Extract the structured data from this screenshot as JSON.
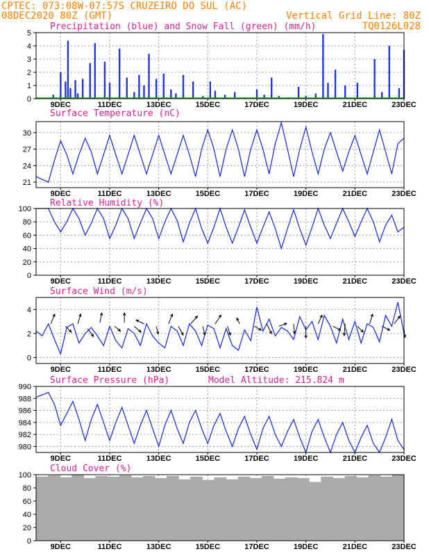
{
  "header": {
    "line1": "CPTEC:  073:08W-07:57S  CRUZEIRO DO SUL (AC)",
    "line2_left": "08DEC2020 80Z (GMT)",
    "line2_right": "Vertical Grid Line: 80Z",
    "line3_right": "TQ0126L028"
  },
  "x_labels": [
    "9DEC",
    "11DEC",
    "13DEC",
    "15DEC",
    "17DEC",
    "19DEC",
    "21DEC",
    "23DEC"
  ],
  "colors": {
    "header": "#ff7f00",
    "title": "#e0208f",
    "line": "#2233dd",
    "precip": "#2233dd",
    "snow": "#00aa00",
    "cloud": "#aaaaaa"
  },
  "chart_data": [
    {
      "type": "bar",
      "title": "Precipitation (blue) and Snow Fall (green) (mm/h)",
      "ylim": [
        0,
        5
      ],
      "yticks": [
        "0",
        "1",
        "2",
        "3",
        "4",
        "5"
      ],
      "x_days": [
        8.7,
        9.0,
        9.2,
        9.3,
        9.4,
        9.6,
        9.7,
        9.9,
        10.2,
        10.4,
        10.8,
        11.0,
        11.4,
        11.7,
        12.0,
        12.2,
        12.4,
        12.6,
        12.9,
        13.2,
        13.5,
        13.7,
        14.0,
        14.4,
        14.8,
        15.1,
        15.3,
        15.7,
        16.1,
        16.5,
        17.0,
        17.3,
        17.6,
        17.9,
        18.3,
        18.7,
        19.0,
        19.4,
        19.7,
        19.9,
        20.2,
        20.6,
        21.1,
        21.4,
        21.8,
        22.1,
        22.4,
        22.8,
        23.0
      ],
      "values": [
        0.3,
        2.0,
        1.3,
        4.4,
        0.8,
        1.4,
        0.4,
        1.5,
        2.7,
        4.2,
        2.8,
        1.2,
        3.8,
        1.6,
        0.5,
        1.8,
        1.0,
        3.4,
        1.5,
        1.9,
        0.7,
        0.4,
        1.8,
        1.3,
        0.2,
        1.3,
        0.6,
        0.3,
        0.5,
        0.1,
        0.7,
        0.3,
        1.6,
        0.2,
        0.1,
        0.9,
        0.2,
        0.4,
        4.9,
        1.2,
        2.2,
        1.0,
        1.2,
        0.1,
        3.0,
        0.5,
        4.0,
        0.8,
        3.7
      ],
      "snow_values": []
    },
    {
      "type": "line",
      "title": "Surface Temperature (nC)",
      "ylim": [
        20,
        32
      ],
      "yticks": [
        "21",
        "24",
        "27",
        "30"
      ],
      "y_tick_values": [
        21,
        24,
        27,
        30
      ],
      "x_days": [
        8.0,
        8.25,
        8.5,
        8.75,
        9.0,
        9.25,
        9.5,
        9.75,
        10.0,
        10.25,
        10.5,
        10.75,
        11.0,
        11.25,
        11.5,
        11.75,
        12.0,
        12.25,
        12.5,
        12.75,
        13.0,
        13.25,
        13.5,
        13.75,
        14.0,
        14.25,
        14.5,
        14.75,
        15.0,
        15.25,
        15.5,
        15.75,
        16.0,
        16.25,
        16.5,
        16.75,
        17.0,
        17.25,
        17.5,
        17.75,
        18.0,
        18.25,
        18.5,
        18.75,
        19.0,
        19.25,
        19.5,
        19.75,
        20.0,
        20.25,
        20.5,
        20.75,
        21.0,
        21.25,
        21.5,
        21.75,
        22.0,
        22.25,
        22.5,
        22.75,
        23.0
      ],
      "values": [
        22,
        21.5,
        21,
        25,
        28.5,
        26,
        22.5,
        26,
        29,
        26.5,
        22.5,
        26,
        29.5,
        26,
        22.5,
        26,
        29.5,
        26,
        22.5,
        26,
        29.5,
        26,
        22.5,
        26,
        29.5,
        26,
        22,
        27,
        30.5,
        27,
        22,
        27,
        30.5,
        27,
        22,
        27,
        30.5,
        27,
        22.5,
        28,
        31.8,
        27,
        22,
        27,
        31,
        26.5,
        22.5,
        27,
        30,
        26.5,
        23,
        26.5,
        29.5,
        26,
        22.5,
        26.5,
        30.5,
        26.5,
        22.5,
        28,
        29
      ]
    },
    {
      "type": "line",
      "title": "Relative Humidity (%)",
      "ylim": [
        0,
        100
      ],
      "yticks": [
        "0",
        "20",
        "40",
        "60",
        "80",
        "100"
      ],
      "y_tick_values": [
        0,
        20,
        40,
        60,
        80,
        100
      ],
      "x_days": [
        8.0,
        8.25,
        8.5,
        8.75,
        9.0,
        9.25,
        9.5,
        9.75,
        10.0,
        10.25,
        10.5,
        10.75,
        11.0,
        11.25,
        11.5,
        11.75,
        12.0,
        12.25,
        12.5,
        12.75,
        13.0,
        13.25,
        13.5,
        13.75,
        14.0,
        14.25,
        14.5,
        14.75,
        15.0,
        15.25,
        15.5,
        15.75,
        16.0,
        16.25,
        16.5,
        16.75,
        17.0,
        17.25,
        17.5,
        17.75,
        18.0,
        18.25,
        18.5,
        18.75,
        19.0,
        19.25,
        19.5,
        19.75,
        20.0,
        20.25,
        20.5,
        20.75,
        21.0,
        21.25,
        21.5,
        21.75,
        22.0,
        22.25,
        22.5,
        22.75,
        23.0
      ],
      "values": [
        100,
        100,
        100,
        80,
        65,
        80,
        100,
        85,
        60,
        78,
        100,
        85,
        55,
        75,
        100,
        85,
        55,
        78,
        100,
        85,
        55,
        80,
        100,
        82,
        50,
        78,
        100,
        70,
        48,
        72,
        100,
        72,
        48,
        72,
        98,
        72,
        48,
        72,
        95,
        70,
        40,
        70,
        98,
        70,
        45,
        72,
        100,
        75,
        55,
        78,
        100,
        80,
        58,
        80,
        100,
        80,
        50,
        75,
        90,
        65,
        72
      ]
    },
    {
      "type": "line",
      "title": "Surface Wind (m/s)",
      "ylim": [
        -0.5,
        5
      ],
      "yticks": [
        "0",
        "2",
        "4"
      ],
      "y_tick_values": [
        0,
        2,
        4
      ],
      "x_days": [
        8.0,
        8.25,
        8.5,
        8.75,
        9.0,
        9.25,
        9.5,
        9.75,
        10.0,
        10.25,
        10.5,
        10.75,
        11.0,
        11.25,
        11.5,
        11.75,
        12.0,
        12.25,
        12.5,
        12.75,
        13.0,
        13.25,
        13.5,
        13.75,
        14.0,
        14.25,
        14.5,
        14.75,
        15.0,
        15.25,
        15.5,
        15.75,
        16.0,
        16.25,
        16.5,
        16.75,
        17.0,
        17.25,
        17.5,
        17.75,
        18.0,
        18.25,
        18.5,
        18.75,
        19.0,
        19.25,
        19.5,
        19.75,
        20.0,
        20.25,
        20.5,
        20.75,
        21.0,
        21.25,
        21.5,
        21.75,
        22.0,
        22.25,
        22.5,
        22.75,
        23.0
      ],
      "values": [
        2.2,
        1.8,
        2.8,
        1.5,
        0.3,
        2.5,
        2.8,
        1.2,
        2.0,
        2.5,
        1.8,
        1.0,
        2.6,
        1.4,
        0.8,
        2.4,
        2.0,
        1.0,
        2.8,
        1.8,
        1.2,
        0.8,
        2.6,
        2.2,
        1.0,
        2.8,
        2.2,
        1.0,
        2.7,
        2.4,
        0.8,
        2.4,
        1.0,
        0.6,
        2.3,
        1.4,
        4.2,
        2.2,
        3.2,
        1.8,
        2.5,
        2.2,
        1.5,
        3.4,
        2.3,
        3.0,
        1.5,
        3.5,
        2.6,
        1.2,
        3.2,
        1.5,
        3.0,
        1.2,
        2.8,
        2.5,
        1.3,
        3.5,
        2.6,
        4.6,
        2.0
      ],
      "arrows": [
        {
          "x": 8.6,
          "y": 2.8,
          "u": 0.4,
          "v": 1.0
        },
        {
          "x": 9.2,
          "y": 2.6,
          "u": 0.6,
          "v": -0.6
        },
        {
          "x": 9.7,
          "y": 2.8,
          "u": 0.3,
          "v": 1.0
        },
        {
          "x": 10.1,
          "y": 2.4,
          "u": 0.6,
          "v": -0.8
        },
        {
          "x": 10.6,
          "y": 2.9,
          "u": 0.2,
          "v": 1.0
        },
        {
          "x": 11.2,
          "y": 2.6,
          "u": 0.6,
          "v": -0.5
        },
        {
          "x": 11.6,
          "y": 2.9,
          "u": 0.0,
          "v": 1.0
        },
        {
          "x": 12.0,
          "y": 2.6,
          "u": 0.7,
          "v": -0.6
        },
        {
          "x": 12.4,
          "y": 2.8,
          "u": -0.8,
          "v": 0.4
        },
        {
          "x": 12.9,
          "y": 2.6,
          "u": 0.2,
          "v": -0.8
        },
        {
          "x": 13.4,
          "y": 2.8,
          "u": 0.4,
          "v": 1.0
        },
        {
          "x": 13.8,
          "y": 2.6,
          "u": 0.5,
          "v": -0.9
        },
        {
          "x": 14.3,
          "y": 2.8,
          "u": 0.7,
          "v": 0.8
        },
        {
          "x": 14.8,
          "y": 2.6,
          "u": 0.2,
          "v": -0.9
        },
        {
          "x": 15.3,
          "y": 2.8,
          "u": 0.6,
          "v": 0.9
        },
        {
          "x": 15.8,
          "y": 2.6,
          "u": 0.3,
          "v": -0.9
        },
        {
          "x": 16.3,
          "y": 2.8,
          "u": -0.3,
          "v": 0.6
        },
        {
          "x": 16.9,
          "y": 2.6,
          "u": 0.7,
          "v": -0.4
        },
        {
          "x": 17.4,
          "y": 2.8,
          "u": 0.5,
          "v": -1.0
        },
        {
          "x": 17.9,
          "y": 2.6,
          "u": 0.8,
          "v": 0.3
        },
        {
          "x": 18.5,
          "y": 2.8,
          "u": 0.1,
          "v": -1.0
        },
        {
          "x": 19.0,
          "y": 2.6,
          "u": 0.0,
          "v": -1.2
        },
        {
          "x": 19.5,
          "y": 2.8,
          "u": 0.4,
          "v": 0.9
        },
        {
          "x": 20.1,
          "y": 2.6,
          "u": 0.8,
          "v": -0.4
        },
        {
          "x": 20.6,
          "y": 2.8,
          "u": -0.1,
          "v": -1.2
        },
        {
          "x": 21.1,
          "y": 2.6,
          "u": 0.6,
          "v": -0.6
        },
        {
          "x": 21.6,
          "y": 2.8,
          "u": 0.3,
          "v": 1.0
        },
        {
          "x": 22.1,
          "y": 2.6,
          "u": 0.8,
          "v": -0.4
        },
        {
          "x": 22.6,
          "y": 2.8,
          "u": 0.6,
          "v": 0.8
        },
        {
          "x": 23.0,
          "y": 2.4,
          "u": 0.1,
          "v": -0.9
        }
      ]
    },
    {
      "type": "line",
      "title": "Surface Pressure (hPa)",
      "annotation": "Model Altitude: 215.824 m",
      "ylim": [
        979,
        990
      ],
      "yticks": [
        "980",
        "982",
        "984",
        "986",
        "988",
        "990"
      ],
      "y_tick_values": [
        980,
        982,
        984,
        986,
        988,
        990
      ],
      "x_days": [
        8.0,
        8.25,
        8.5,
        8.75,
        9.0,
        9.25,
        9.5,
        9.75,
        10.0,
        10.25,
        10.5,
        10.75,
        11.0,
        11.25,
        11.5,
        11.75,
        12.0,
        12.25,
        12.5,
        12.75,
        13.0,
        13.25,
        13.5,
        13.75,
        14.0,
        14.25,
        14.5,
        14.75,
        15.0,
        15.25,
        15.5,
        15.75,
        16.0,
        16.25,
        16.5,
        16.75,
        17.0,
        17.25,
        17.5,
        17.75,
        18.0,
        18.25,
        18.5,
        18.75,
        19.0,
        19.25,
        19.5,
        19.75,
        20.0,
        20.25,
        20.5,
        20.75,
        21.0,
        21.25,
        21.5,
        21.75,
        22.0,
        22.25,
        22.5,
        22.75,
        23.0
      ],
      "values": [
        988.2,
        988.6,
        989.0,
        987.0,
        983.5,
        985.5,
        987.5,
        984.5,
        981.0,
        984.5,
        987.0,
        984.0,
        981.0,
        984.0,
        986.5,
        983.5,
        980.5,
        983.5,
        986.0,
        983.0,
        980.0,
        983.5,
        986.0,
        983.0,
        980.5,
        984.0,
        986.0,
        983.0,
        980.5,
        983.5,
        985.5,
        982.5,
        980.0,
        983.0,
        985.0,
        982.0,
        979.5,
        983.0,
        985.0,
        982.0,
        980.0,
        982.5,
        984.5,
        981.5,
        979.0,
        982.5,
        984.5,
        981.5,
        979.0,
        982.0,
        984.0,
        981.0,
        979.0,
        981.5,
        983.5,
        980.5,
        979.0,
        981.5,
        984.5,
        981.0,
        979.5
      ]
    },
    {
      "type": "bar",
      "title": "Cloud Cover (%)",
      "ylim": [
        0,
        100
      ],
      "yticks": [
        "0",
        "20",
        "40",
        "60",
        "80",
        "100"
      ],
      "y_tick_values": [
        0,
        20,
        40,
        60,
        80,
        100
      ],
      "x_days": [
        8.0,
        8.5,
        9.0,
        9.5,
        10.0,
        10.5,
        11.0,
        11.5,
        12.0,
        12.5,
        13.0,
        13.5,
        14.0,
        14.5,
        15.0,
        15.5,
        16.0,
        16.5,
        17.0,
        17.5,
        18.0,
        18.5,
        19.0,
        19.5,
        20.0,
        20.5,
        21.0,
        21.5,
        22.0,
        22.5,
        23.0
      ],
      "values": [
        97,
        99,
        96,
        100,
        95,
        98,
        97,
        99,
        96,
        98,
        95,
        98,
        93,
        97,
        92,
        96,
        93,
        97,
        95,
        98,
        94,
        96,
        95,
        89,
        97,
        95,
        98,
        96,
        99,
        97,
        100
      ]
    }
  ]
}
